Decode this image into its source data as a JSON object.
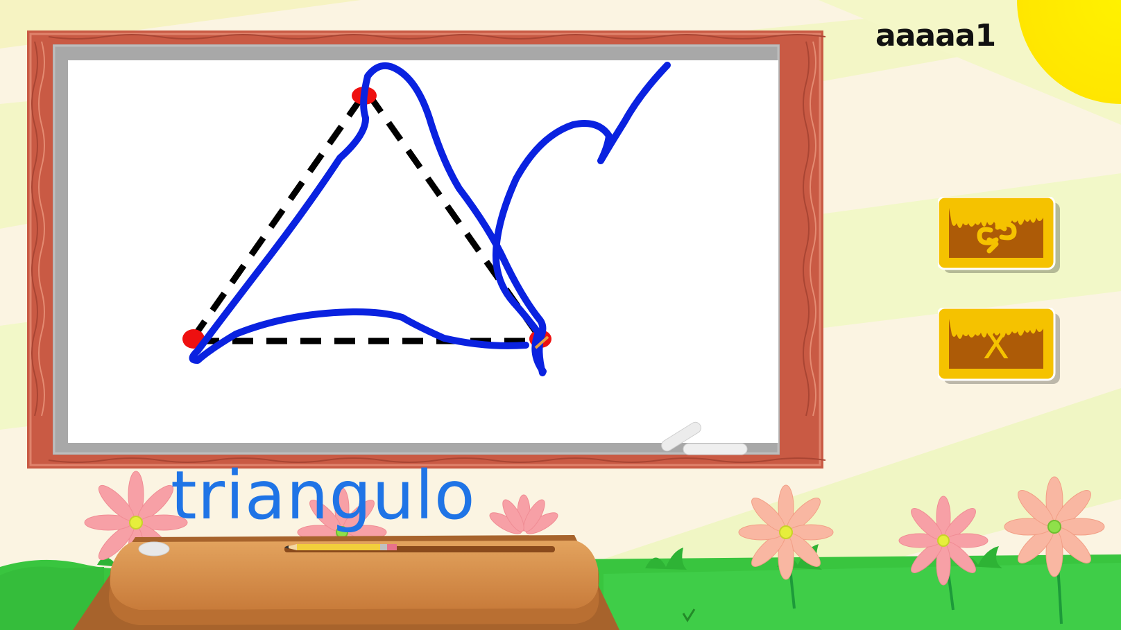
{
  "player": {
    "name": "aaaaa1"
  },
  "lesson": {
    "word": "triangulo"
  },
  "buttons": {
    "reset": {
      "icon": "reset-arrows-icon"
    },
    "close": {
      "label": "X"
    }
  },
  "colors": {
    "frame": "#c95a44",
    "board_border": "#a8a8a8",
    "board": "#ffffff",
    "stroke": "#0a22e0",
    "guide": "#000000",
    "vertex": "#ee1010",
    "button_fill": "#ad5b07",
    "button_border": "#f5c200",
    "word": "#1f74e6",
    "grass": "#34c53d",
    "table": "#d48a45"
  }
}
